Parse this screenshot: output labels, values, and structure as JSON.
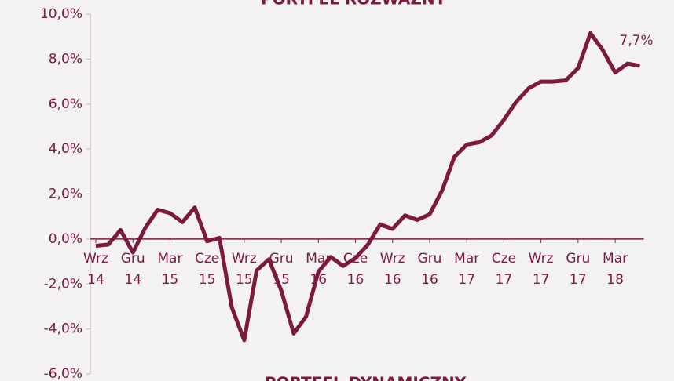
{
  "chart_data": {
    "type": "line",
    "title": "PORTFEL ROZWAŻNY",
    "subtitle": "PORTFEL DYNAMICZNY",
    "categories": [
      "Wrz 14",
      null,
      null,
      "Gru 14",
      null,
      null,
      "Mar 15",
      null,
      null,
      "Cze 15",
      null,
      null,
      "Wrz 15",
      null,
      null,
      "Gru 15",
      null,
      null,
      "Mar 16",
      null,
      null,
      "Cze 16",
      null,
      null,
      "Wrz 16",
      null,
      null,
      "Gru 16",
      null,
      null,
      "Mar 17",
      null,
      null,
      "Cze 17",
      null,
      null,
      "Wrz 17",
      null,
      null,
      "Gru 17",
      null,
      null,
      "Mar 18",
      null,
      null
    ],
    "series": [
      {
        "name": "Portfel Rozważny",
        "color": "#7b1a3e",
        "values": [
          -0.3,
          -0.25,
          0.4,
          -0.6,
          0.5,
          1.3,
          1.15,
          0.75,
          1.4,
          -0.1,
          0.05,
          -3.05,
          -4.5,
          -1.4,
          -0.9,
          -2.3,
          -4.2,
          -3.45,
          -1.45,
          -0.8,
          -1.2,
          -0.85,
          -0.25,
          0.65,
          0.45,
          1.05,
          0.85,
          1.1,
          2.15,
          3.65,
          4.2,
          4.3,
          4.6,
          5.3,
          6.1,
          6.7,
          7.0,
          7.0,
          7.05,
          7.6,
          9.15,
          8.4,
          7.4,
          7.8,
          7.7
        ]
      }
    ],
    "annotation": "7,7%",
    "ylim": [
      -6,
      10
    ],
    "yticks": [
      {
        "value": -6,
        "label": "-6,0%"
      },
      {
        "value": -4,
        "label": "-4,0%"
      },
      {
        "value": -2,
        "label": "-2,0%"
      },
      {
        "value": 0,
        "label": "0,0%"
      },
      {
        "value": 2,
        "label": "2,0%"
      },
      {
        "value": 4,
        "label": "4,0%"
      },
      {
        "value": 6,
        "label": "6,0%"
      },
      {
        "value": 8,
        "label": "8,0%"
      },
      {
        "value": 10,
        "label": "10,0%"
      }
    ],
    "grid": false
  }
}
